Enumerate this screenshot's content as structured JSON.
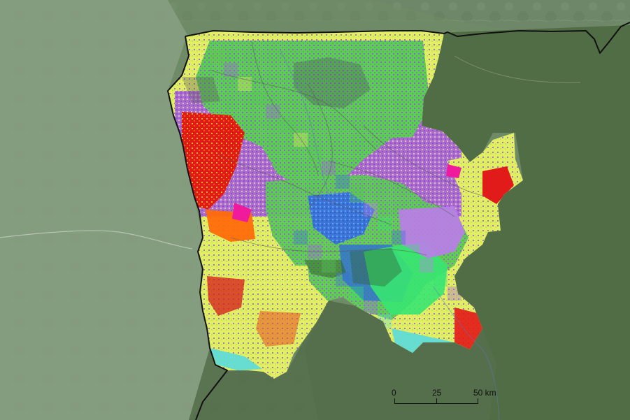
{
  "scale_bar": {
    "label_0": "0",
    "label_1": "25",
    "label_2": "50 km"
  },
  "colors": {
    "background_light": "#8fa48a",
    "background_dark": "#4f6a43",
    "boundary": "#111111",
    "yellow": "#e7f05a",
    "green": "#58c95a",
    "purple": "#8a4fd1",
    "red": "#e31b1b",
    "blue": "#3a6fd6",
    "magenta": "#e11a9f",
    "cyan": "#5fd8c8"
  }
}
